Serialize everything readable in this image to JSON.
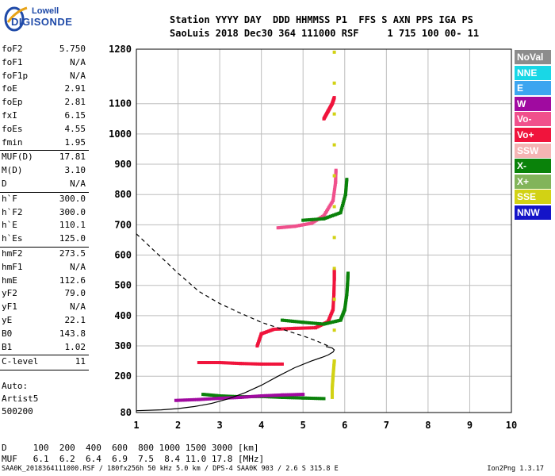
{
  "logo": {
    "line1": "Lowell",
    "line2": "DIGISONDE"
  },
  "header": {
    "line1": "Station YYYY DAY  DDD HHMMSS P1  FFS S AXN PPS IGA PS",
    "line2": "SaoLuis 2018 Dec30 364 111000 RSF     1 715 100 00- 11"
  },
  "params": {
    "foF2": "5.750",
    "foF1": "N/A",
    "foF1p": "N/A",
    "foE": "2.91",
    "foEp": "2.81",
    "fxI": "6.15",
    "foEs": "4.55",
    "fmin": "1.95",
    "MUFD": "17.81",
    "MD": "3.10",
    "D": "N/A",
    "hF": "300.0",
    "hF2": "300.0",
    "hE": "110.1",
    "hEs": "125.0",
    "hmF2": "273.5",
    "hmF1": "N/A",
    "hmE": "112.6",
    "yF2": "79.0",
    "yF1": "N/A",
    "yE": "22.1",
    "B0": "143.8",
    "B1": "1.02",
    "Clevel": "11"
  },
  "param_labels": {
    "foF2": "foF2",
    "foF1": "foF1",
    "foF1p": "foF1p",
    "foE": "foE",
    "foEp": "foEp",
    "fxI": "fxI",
    "foEs": "foEs",
    "fmin": "fmin",
    "MUFD": "MUF(D)",
    "MD": "M(D)",
    "D": "D",
    "hF": "h`F",
    "hF2": "h`F2",
    "hE": "h`E",
    "hEs": "h`Es",
    "hmF2": "hmF2",
    "hmF1": "hmF1",
    "hmE": "hmE",
    "yF2": "yF2",
    "yF1": "yF1",
    "yE": "yE",
    "B0": "B0",
    "B1": "B1",
    "Clevel": "C-level"
  },
  "auto": {
    "line1": "Auto:",
    "line2": "Artist5",
    "line3": "500200"
  },
  "bottom": {
    "row1": "D     100  200  400  600  800 1000 1500 3000 [km]",
    "row2": "MUF   6.1  6.2  6.4  6.9  7.5  8.4 11.0 17.8 [MHz]"
  },
  "footer": "SAA0K_2018364111000.RSF / 180fx256h 50 kHz 5.0 km / DPS-4 SAA0K 903 / 2.6 S 315.8 E",
  "version": "Ion2Png 1.3.17",
  "legend": [
    {
      "label": "NoVal",
      "color": "#8c8c8c"
    },
    {
      "label": "NNE",
      "color": "#19d7e6"
    },
    {
      "label": "E",
      "color": "#3ca5f0"
    },
    {
      "label": "W",
      "color": "#a00aa0"
    },
    {
      "label": "Vo-",
      "color": "#f0508c"
    },
    {
      "label": "Vo+",
      "color": "#f0143c"
    },
    {
      "label": "SSW",
      "color": "#f5b4b4"
    },
    {
      "label": "X-",
      "color": "#0a820a"
    },
    {
      "label": "X+",
      "color": "#82b45a"
    },
    {
      "label": "SSE",
      "color": "#d2d214"
    },
    {
      "label": "NNW",
      "color": "#1414c8"
    }
  ],
  "chart_data": {
    "type": "scatter",
    "title": "",
    "xlabel": "",
    "ylabel": "",
    "xlim": [
      1,
      10
    ],
    "ylim": [
      80,
      1280
    ],
    "x_ticks": [
      1,
      2,
      3,
      4,
      5,
      6,
      7,
      8,
      9,
      10
    ],
    "y_ticks": [
      80,
      200,
      300,
      400,
      500,
      600,
      700,
      800,
      900,
      1000,
      1100,
      1280
    ],
    "grid": true,
    "series": [
      {
        "line": "solid",
        "points": [
          [
            1.0,
            86
          ],
          [
            1.6,
            89
          ],
          [
            2.0,
            93
          ],
          [
            2.4,
            100
          ],
          [
            2.8,
            110
          ],
          [
            3.2,
            125
          ],
          [
            3.6,
            145
          ],
          [
            4.0,
            170
          ],
          [
            4.4,
            200
          ],
          [
            4.8,
            228
          ],
          [
            5.2,
            250
          ],
          [
            5.45,
            262
          ],
          [
            5.6,
            270
          ],
          [
            5.72,
            280
          ],
          [
            5.75,
            287
          ],
          [
            5.7,
            293
          ],
          [
            5.55,
            298
          ]
        ]
      },
      {
        "line": "dashed",
        "points": [
          [
            1.0,
            670
          ],
          [
            1.5,
            605
          ],
          [
            2.0,
            540
          ],
          [
            2.5,
            480
          ],
          [
            3.0,
            440
          ],
          [
            3.5,
            408
          ],
          [
            4.0,
            378
          ],
          [
            4.5,
            355
          ],
          [
            5.0,
            333
          ],
          [
            5.3,
            318
          ],
          [
            5.6,
            300
          ]
        ]
      }
    ],
    "traces": [
      {
        "color": "#f0143c",
        "points": [
          [
            3.9,
            300
          ],
          [
            4.0,
            340
          ],
          [
            4.3,
            355
          ],
          [
            4.8,
            358
          ],
          [
            5.3,
            360
          ],
          [
            5.6,
            380
          ],
          [
            5.72,
            420
          ],
          [
            5.74,
            470
          ],
          [
            5.75,
            520
          ],
          [
            5.75,
            550
          ]
        ]
      },
      {
        "color": "#0a820a",
        "points": [
          [
            4.5,
            385
          ],
          [
            5.0,
            378
          ],
          [
            5.5,
            372
          ],
          [
            5.9,
            385
          ],
          [
            6.0,
            420
          ],
          [
            6.05,
            470
          ],
          [
            6.07,
            510
          ],
          [
            6.08,
            540
          ]
        ]
      },
      {
        "color": "#f0508c",
        "points": [
          [
            4.4,
            690
          ],
          [
            4.8,
            695
          ],
          [
            5.2,
            705
          ],
          [
            5.5,
            730
          ],
          [
            5.72,
            780
          ],
          [
            5.78,
            840
          ],
          [
            5.79,
            880
          ]
        ]
      },
      {
        "color": "#0a820a",
        "points": [
          [
            5.0,
            715
          ],
          [
            5.5,
            720
          ],
          [
            5.9,
            740
          ],
          [
            6.02,
            800
          ],
          [
            6.05,
            850
          ]
        ]
      },
      {
        "color": "#f0143c",
        "points": [
          [
            2.5,
            245
          ],
          [
            3.0,
            245
          ],
          [
            3.5,
            242
          ],
          [
            4.0,
            240
          ],
          [
            4.5,
            240
          ]
        ]
      },
      {
        "color": "#0a820a",
        "points": [
          [
            2.6,
            140
          ],
          [
            3.0,
            135
          ],
          [
            3.5,
            132
          ],
          [
            4.0,
            133
          ],
          [
            4.5,
            130
          ],
          [
            5.0,
            128
          ],
          [
            5.5,
            126
          ]
        ]
      },
      {
        "color": "#a00aa0",
        "points": [
          [
            1.95,
            120
          ],
          [
            2.5,
            123
          ],
          [
            3.0,
            127
          ],
          [
            3.5,
            130
          ],
          [
            4.0,
            135
          ],
          [
            4.5,
            138
          ],
          [
            5.0,
            140
          ]
        ]
      },
      {
        "color": "#d2d214",
        "points": [
          [
            5.7,
            130
          ],
          [
            5.7,
            160
          ],
          [
            5.72,
            200
          ],
          [
            5.75,
            250
          ],
          [
            5.75,
            1270
          ]
        ]
      },
      {
        "color": "#f0143c",
        "points": [
          [
            5.5,
            1050
          ],
          [
            5.6,
            1075
          ],
          [
            5.7,
            1100
          ],
          [
            5.75,
            1120
          ]
        ]
      }
    ]
  }
}
